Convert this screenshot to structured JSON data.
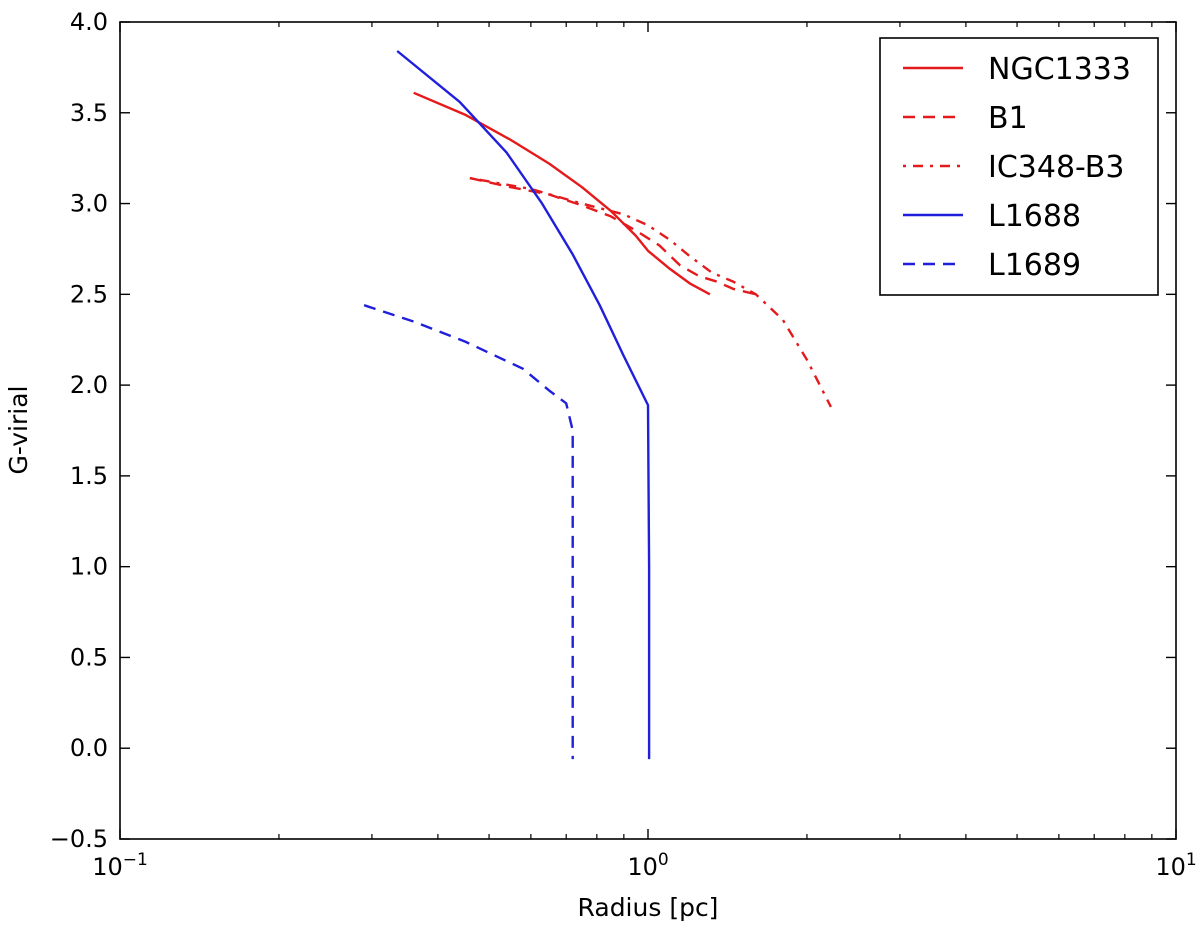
{
  "chart_data": {
    "type": "line",
    "xlabel": "Radius [pc]",
    "ylabel": "G-virial",
    "xscale": "log",
    "xlim": [
      0.1,
      10
    ],
    "ylim": [
      -0.5,
      4.0
    ],
    "xticks": [
      {
        "value": 0.1,
        "base": "10",
        "exp": "−1"
      },
      {
        "value": 1,
        "base": "10",
        "exp": "0"
      },
      {
        "value": 10,
        "base": "10",
        "exp": "1"
      }
    ],
    "yticks": [
      {
        "value": -0.5,
        "label": "−0.5"
      },
      {
        "value": 0.0,
        "label": "0.0"
      },
      {
        "value": 0.5,
        "label": "0.5"
      },
      {
        "value": 1.0,
        "label": "1.0"
      },
      {
        "value": 1.5,
        "label": "1.5"
      },
      {
        "value": 2.0,
        "label": "2.0"
      },
      {
        "value": 2.5,
        "label": "2.5"
      },
      {
        "value": 3.0,
        "label": "3.0"
      },
      {
        "value": 3.5,
        "label": "3.5"
      },
      {
        "value": 4.0,
        "label": "4.0"
      }
    ],
    "grid": false,
    "legend_position": "top-right",
    "series": [
      {
        "name": "NGC1333",
        "color": "#e41a1c",
        "style": "solid",
        "points": [
          [
            0.36,
            3.61
          ],
          [
            0.45,
            3.49
          ],
          [
            0.55,
            3.35
          ],
          [
            0.65,
            3.22
          ],
          [
            0.75,
            3.09
          ],
          [
            0.85,
            2.96
          ],
          [
            0.95,
            2.82
          ],
          [
            1.0,
            2.74
          ],
          [
            1.1,
            2.64
          ],
          [
            1.2,
            2.56
          ],
          [
            1.31,
            2.5
          ]
        ]
      },
      {
        "name": "B1",
        "color": "#e41a1c",
        "style": "dashed",
        "points": [
          [
            0.46,
            3.14
          ],
          [
            0.55,
            3.09
          ],
          [
            0.65,
            3.05
          ],
          [
            0.75,
            2.99
          ],
          [
            0.85,
            2.93
          ],
          [
            0.95,
            2.85
          ],
          [
            1.05,
            2.77
          ],
          [
            1.15,
            2.66
          ],
          [
            1.25,
            2.6
          ],
          [
            1.35,
            2.57
          ],
          [
            1.45,
            2.53
          ],
          [
            1.6,
            2.5
          ]
        ]
      },
      {
        "name": "IC348-B3",
        "color": "#e41a1c",
        "style": "dashdot",
        "points": [
          [
            0.46,
            3.14
          ],
          [
            0.6,
            3.08
          ],
          [
            0.75,
            3.0
          ],
          [
            0.9,
            2.94
          ],
          [
            1.0,
            2.88
          ],
          [
            1.1,
            2.8
          ],
          [
            1.2,
            2.71
          ],
          [
            1.32,
            2.62
          ],
          [
            1.45,
            2.57
          ],
          [
            1.6,
            2.5
          ],
          [
            1.8,
            2.36
          ],
          [
            2.0,
            2.14
          ],
          [
            2.22,
            1.88
          ]
        ]
      },
      {
        "name": "L1688",
        "color": "#1f1fdc",
        "style": "solid",
        "points": [
          [
            0.335,
            3.84
          ],
          [
            0.44,
            3.56
          ],
          [
            0.54,
            3.28
          ],
          [
            0.63,
            3.0
          ],
          [
            0.72,
            2.72
          ],
          [
            0.81,
            2.44
          ],
          [
            0.9,
            2.16
          ],
          [
            1.0,
            1.89
          ],
          [
            1.005,
            1.0
          ],
          [
            1.005,
            0.0
          ],
          [
            1.005,
            -0.06
          ]
        ]
      },
      {
        "name": "L1689",
        "color": "#1f1fdc",
        "style": "dashed",
        "points": [
          [
            0.29,
            2.44
          ],
          [
            0.36,
            2.35
          ],
          [
            0.45,
            2.24
          ],
          [
            0.58,
            2.09
          ],
          [
            0.65,
            1.97
          ],
          [
            0.7,
            1.9
          ],
          [
            0.72,
            1.75
          ],
          [
            0.72,
            1.0
          ],
          [
            0.72,
            0.0
          ],
          [
            0.72,
            -0.06
          ]
        ]
      }
    ]
  }
}
